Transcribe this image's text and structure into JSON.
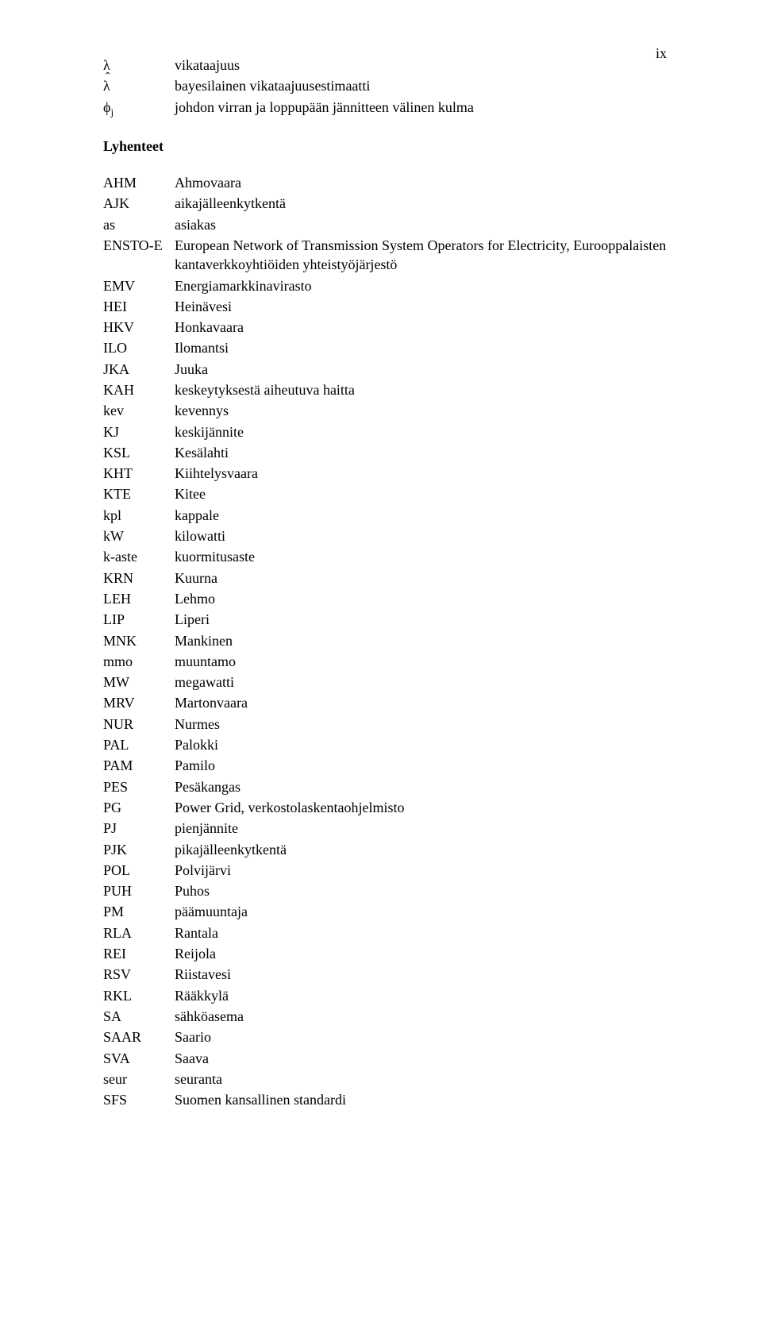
{
  "page_number": "ix",
  "intro_items": [
    {
      "symbol_html": "λ",
      "definition": "vikataajuus"
    },
    {
      "symbol_html": "<span class=\"lambda-hat\">λ</span>",
      "definition": "bayesilainen vikataajuusestimaatti"
    },
    {
      "symbol_html": "ϕ<span class=\"sub\">j</span>",
      "definition": "johdon virran ja loppupään jännitteen välinen kulma"
    }
  ],
  "section_header": "Lyhenteet",
  "abbreviations": [
    {
      "abbr": "AHM",
      "def": "Ahmovaara"
    },
    {
      "abbr": "AJK",
      "def": "aikajälleenkytkentä"
    },
    {
      "abbr": "as",
      "def": "asiakas"
    },
    {
      "abbr": "ENSTO-E",
      "def": "European Network of Transmission System Operators for Electricity, Eurooppalaisten kantaverkkoyhtiöiden yhteistyöjärjestö"
    },
    {
      "abbr": "EMV",
      "def": "Energiamarkkinavirasto"
    },
    {
      "abbr": "HEI",
      "def": "Heinävesi"
    },
    {
      "abbr": "HKV",
      "def": "Honkavaara"
    },
    {
      "abbr": "ILO",
      "def": "Ilomantsi"
    },
    {
      "abbr": "JKA",
      "def": "Juuka"
    },
    {
      "abbr": "KAH",
      "def": "keskeytyksestä aiheutuva haitta"
    },
    {
      "abbr": "kev",
      "def": "kevennys"
    },
    {
      "abbr": "KJ",
      "def": "keskijännite"
    },
    {
      "abbr": "KSL",
      "def": "Kesälahti"
    },
    {
      "abbr": "KHT",
      "def": "Kiihtelysvaara"
    },
    {
      "abbr": "KTE",
      "def": "Kitee"
    },
    {
      "abbr": "kpl",
      "def": "kappale"
    },
    {
      "abbr": "kW",
      "def": "kilowatti"
    },
    {
      "abbr": "k-aste",
      "def": "kuormitusaste"
    },
    {
      "abbr": "KRN",
      "def": "Kuurna"
    },
    {
      "abbr": "LEH",
      "def": "Lehmo"
    },
    {
      "abbr": "LIP",
      "def": "Liperi"
    },
    {
      "abbr": "MNK",
      "def": "Mankinen"
    },
    {
      "abbr": "mmo",
      "def": "muuntamo"
    },
    {
      "abbr": "MW",
      "def": "megawatti"
    },
    {
      "abbr": "MRV",
      "def": "Martonvaara"
    },
    {
      "abbr": "NUR",
      "def": "Nurmes"
    },
    {
      "abbr": "PAL",
      "def": "Palokki"
    },
    {
      "abbr": "PAM",
      "def": "Pamilo"
    },
    {
      "abbr": "PES",
      "def": "Pesäkangas"
    },
    {
      "abbr": "PG",
      "def": "Power Grid, verkostolaskentaohjelmisto"
    },
    {
      "abbr": "PJ",
      "def": "pienjännite"
    },
    {
      "abbr": "PJK",
      "def": "pikajälleenkytkentä"
    },
    {
      "abbr": "POL",
      "def": "Polvijärvi"
    },
    {
      "abbr": "PUH",
      "def": "Puhos"
    },
    {
      "abbr": "PM",
      "def": "päämuuntaja"
    },
    {
      "abbr": "RLA",
      "def": "Rantala"
    },
    {
      "abbr": "REI",
      "def": "Reijola"
    },
    {
      "abbr": "RSV",
      "def": "Riistavesi"
    },
    {
      "abbr": "RKL",
      "def": "Rääkkylä"
    },
    {
      "abbr": "SA",
      "def": "sähköasema"
    },
    {
      "abbr": "SAAR",
      "def": "Saario"
    },
    {
      "abbr": "SVA",
      "def": "Saava"
    },
    {
      "abbr": "seur",
      "def": "seuranta"
    },
    {
      "abbr": "SFS",
      "def": "Suomen kansallinen standardi"
    }
  ]
}
